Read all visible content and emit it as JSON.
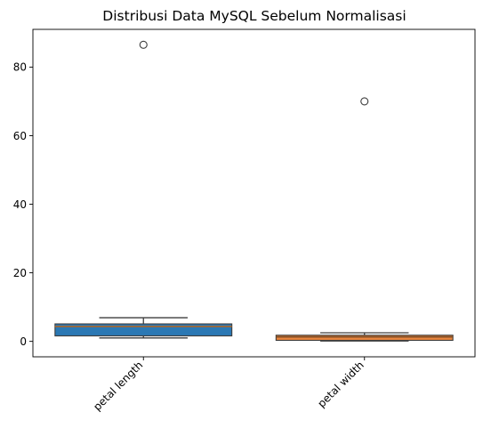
{
  "chart_data": {
    "type": "box",
    "title": "Distribusi Data MySQL Sebelum Normalisasi",
    "xlabel": "",
    "ylabel": "",
    "ylim": [
      -4.5,
      91
    ],
    "yticks": [
      0,
      20,
      40,
      60,
      80
    ],
    "grid": false,
    "categories": [
      "petal length",
      "petal width"
    ],
    "series": [
      {
        "category": "petal length",
        "color": "#2b78b4",
        "whisker_low": 1.0,
        "q1": 1.6,
        "median": 4.35,
        "q3": 5.1,
        "whisker_high": 6.9,
        "outliers": [
          86.5
        ]
      },
      {
        "category": "petal width",
        "color": "#e8853f",
        "whisker_low": 0.1,
        "q1": 0.3,
        "median": 1.3,
        "q3": 1.8,
        "whisker_high": 2.5,
        "outliers": [
          70
        ]
      }
    ]
  }
}
